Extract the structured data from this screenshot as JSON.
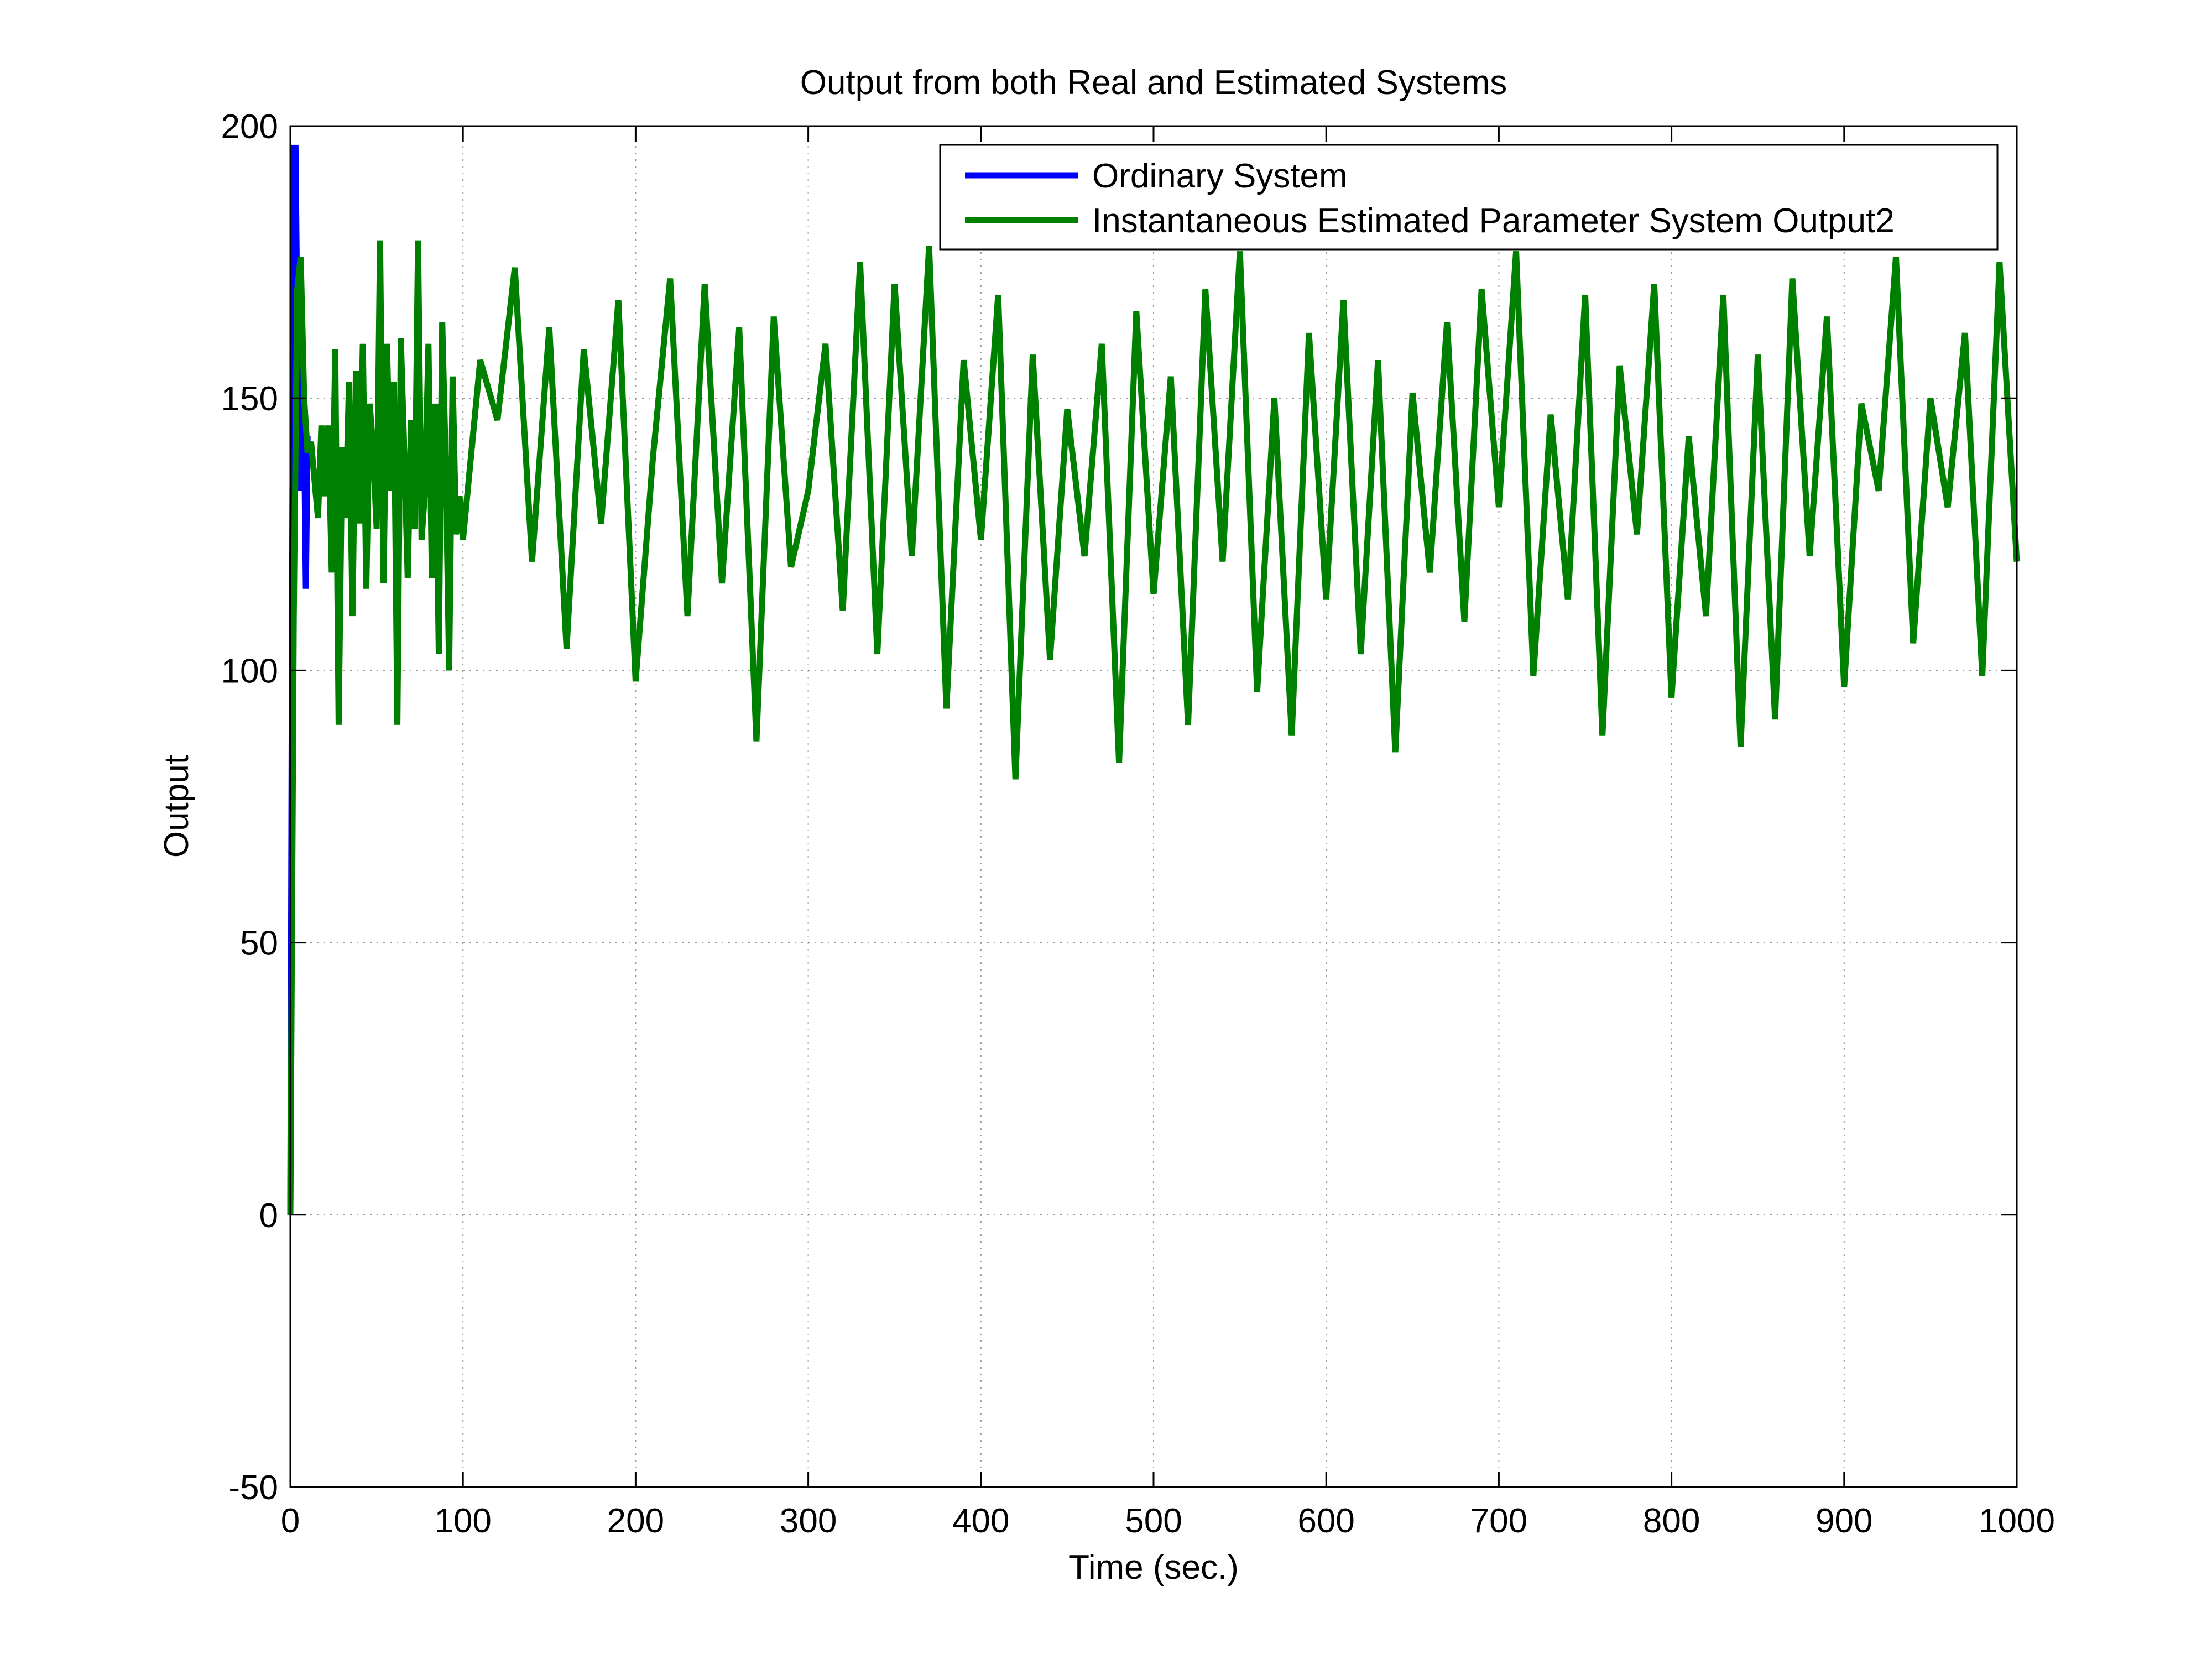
{
  "chart_data": {
    "type": "line",
    "title": "Output from both Real and Estimated Systems",
    "xlabel": "Time (sec.)",
    "ylabel": "Output",
    "xlim": [
      0,
      1000
    ],
    "ylim": [
      -50,
      200
    ],
    "xticks": [
      0,
      100,
      200,
      300,
      400,
      500,
      600,
      700,
      800,
      900,
      1000
    ],
    "yticks": [
      -50,
      0,
      50,
      100,
      150,
      200
    ],
    "xtick_labels": [
      "0",
      "100",
      "200",
      "300",
      "400",
      "500",
      "600",
      "700",
      "800",
      "900",
      "1000"
    ],
    "ytick_labels": [
      "-50",
      "0",
      "50",
      "100",
      "150",
      "200"
    ],
    "grid": true,
    "legend_position": "top-right",
    "series": [
      {
        "name": "Ordinary System",
        "color": "#0000ff",
        "x": [
          0,
          1,
          2,
          3,
          4,
          5,
          6,
          7,
          8,
          9,
          10
        ],
        "y": [
          0,
          110,
          196,
          196,
          165,
          133,
          150,
          154,
          143,
          115,
          143
        ]
      },
      {
        "name": "Instantaneous Estimated Parameter System Output2",
        "color": "#008000",
        "x": [
          0,
          2,
          4,
          6,
          8,
          10,
          12,
          14,
          16,
          18,
          20,
          22,
          24,
          26,
          28,
          30,
          32,
          34,
          36,
          38,
          40,
          42,
          44,
          46,
          48,
          50,
          52,
          54,
          56,
          58,
          60,
          62,
          64,
          66,
          68,
          70,
          72,
          74,
          76,
          78,
          80,
          82,
          84,
          86,
          88,
          90,
          92,
          94,
          96,
          98,
          100,
          110,
          120,
          130,
          140,
          150,
          160,
          170,
          180,
          190,
          200,
          210,
          220,
          230,
          240,
          250,
          260,
          270,
          280,
          290,
          300,
          310,
          320,
          330,
          340,
          350,
          360,
          370,
          380,
          390,
          400,
          410,
          420,
          430,
          440,
          450,
          460,
          470,
          480,
          490,
          500,
          510,
          520,
          530,
          540,
          550,
          560,
          570,
          580,
          590,
          600,
          610,
          620,
          630,
          640,
          650,
          660,
          670,
          680,
          690,
          700,
          710,
          720,
          730,
          740,
          750,
          760,
          770,
          780,
          790,
          800,
          810,
          820,
          830,
          840,
          850,
          860,
          870,
          880,
          890,
          900,
          910,
          920,
          930,
          940,
          950,
          960,
          970,
          980,
          990,
          1000
        ],
        "y": [
          0,
          110,
          170,
          176,
          150,
          140,
          142,
          135,
          128,
          145,
          132,
          145,
          118,
          159,
          90,
          141,
          128,
          153,
          110,
          155,
          127,
          160,
          115,
          149,
          140,
          126,
          179,
          116,
          160,
          133,
          153,
          90,
          161,
          140,
          117,
          146,
          126,
          179,
          124,
          133,
          160,
          117,
          149,
          103,
          164,
          138,
          100,
          154,
          125,
          132,
          124,
          157,
          146,
          174,
          120,
          163,
          104,
          159,
          127,
          168,
          98,
          139,
          172,
          110,
          171,
          116,
          163,
          87,
          165,
          119,
          133,
          160,
          111,
          175,
          103,
          171,
          121,
          178,
          93,
          157,
          124,
          169,
          80,
          158,
          102,
          148,
          121,
          160,
          83,
          166,
          114,
          154,
          90,
          170,
          120,
          177,
          96,
          150,
          88,
          162,
          113,
          168,
          103,
          157,
          85,
          151,
          118,
          164,
          109,
          170,
          130,
          177,
          99,
          147,
          113,
          169,
          88,
          156,
          125,
          171,
          95,
          143,
          110,
          169,
          86,
          158,
          91,
          172,
          121,
          165,
          97,
          149,
          133,
          176,
          105,
          150,
          130,
          162,
          99,
          175,
          120
        ]
      }
    ]
  }
}
